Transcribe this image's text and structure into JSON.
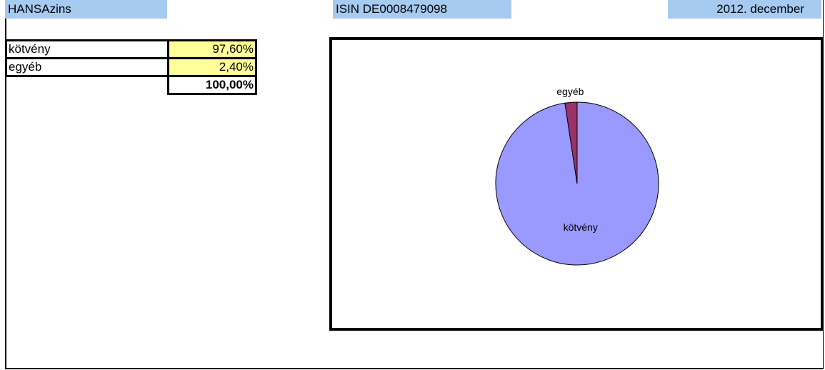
{
  "header": {
    "title": "HANSAzins",
    "isin": "ISIN DE0008479098",
    "date": "2012. december"
  },
  "table": {
    "rows": [
      [
        "kötvény",
        "97,60%"
      ],
      [
        "egyéb",
        "2,40%"
      ]
    ],
    "total": "100,00%"
  },
  "chart_data": {
    "type": "pie",
    "categories": [
      "kötvény",
      "egyéb"
    ],
    "values": [
      97.6,
      2.4
    ],
    "colors": [
      "#9999ff",
      "#993366"
    ]
  }
}
